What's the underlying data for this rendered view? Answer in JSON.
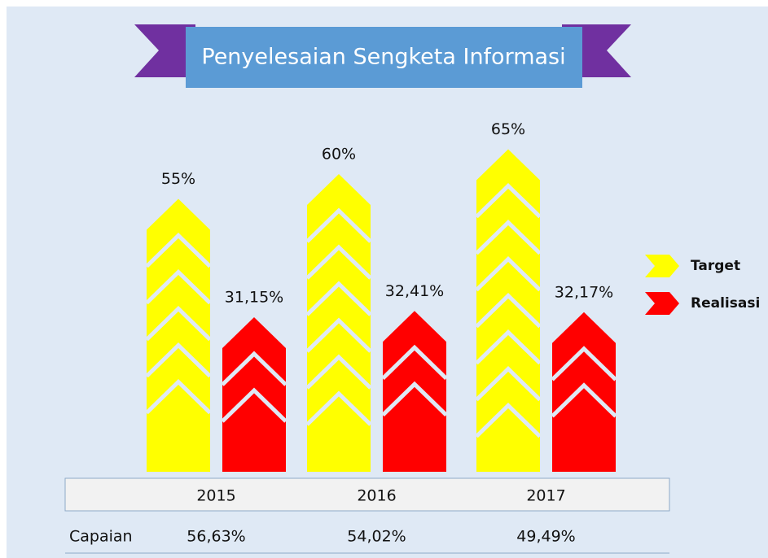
{
  "chart_data": {
    "type": "bar",
    "title": "Penyelesaian Sengketa Informasi",
    "categories": [
      "2015",
      "2016",
      "2017"
    ],
    "series": [
      {
        "name": "Target",
        "color": "#ffff00",
        "values": [
          55,
          60,
          65
        ],
        "value_labels": [
          "55%",
          "60%",
          "65%"
        ]
      },
      {
        "name": "Realisasi",
        "color": "#ff0000",
        "values": [
          31.15,
          32.41,
          32.17
        ],
        "value_labels": [
          "31,15%",
          "32,41%",
          "32,17%"
        ]
      }
    ],
    "capaian": {
      "label": "Capaian",
      "values": [
        56.63,
        54.02,
        49.49
      ],
      "value_labels": [
        "56,63%",
        "54,02%",
        "49,49%"
      ]
    }
  }
}
